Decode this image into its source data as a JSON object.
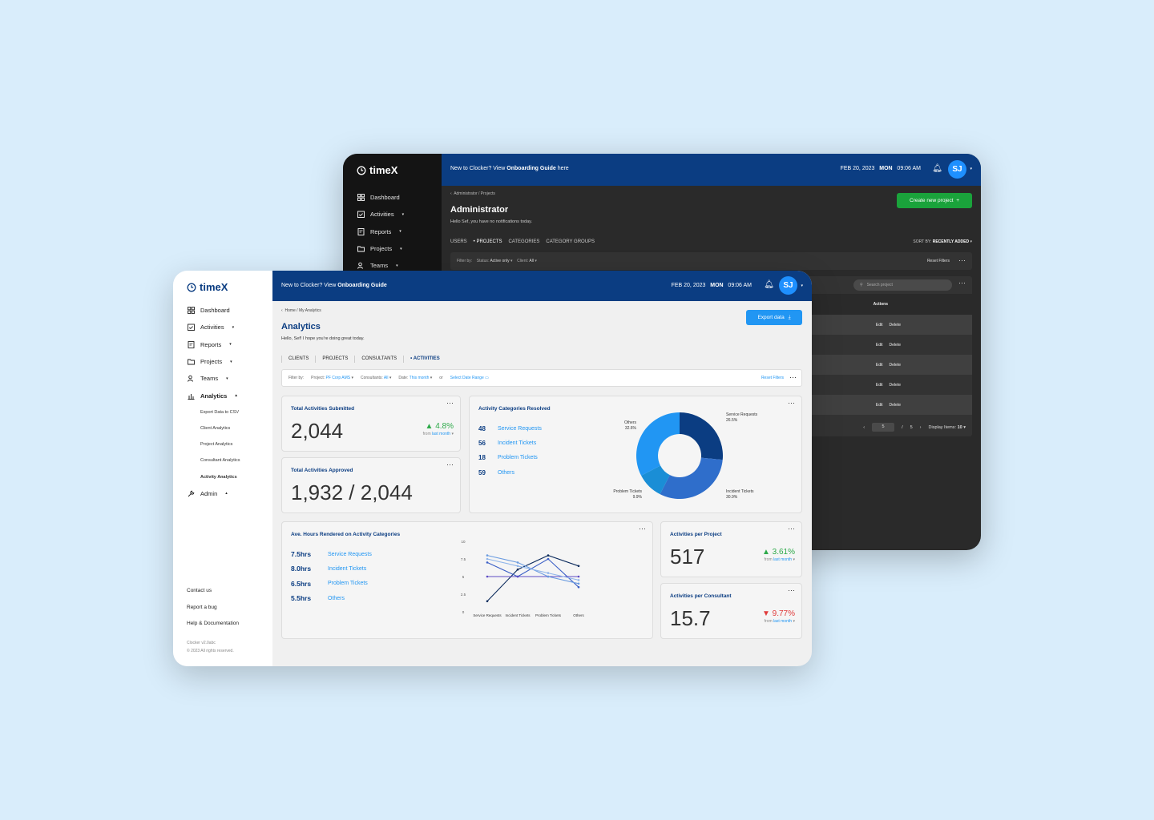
{
  "back": {
    "logo": "timeX",
    "nav": [
      "Dashboard",
      "Activities",
      "Reports",
      "Projects",
      "Teams"
    ],
    "onboarding_prefix": "New to Clocker?  View ",
    "onboarding_link": "Onboarding Guide",
    "onboarding_suffix": " here",
    "date": "FEB 20, 2023",
    "day": "MON",
    "time": "09:06 AM",
    "avatar": "SJ",
    "breadcrumb": "Administrator  /  Projects",
    "title": "Administrator",
    "subtitle": "Hello Sef, you have no notifications today.",
    "create_button": "Create new project",
    "tabs": [
      "USERS",
      "PROJECTS",
      "CATEGORIES",
      "CATEGORY GROUPS"
    ],
    "sort_label": "SORT BY:",
    "sort_value": "RECENTLY ADDED",
    "filter_label": "Filter by:",
    "status_label": "Status:",
    "status_value": "Active only",
    "client_label": "Client:",
    "client_value": "All",
    "reset_filters": "Reset Filters",
    "search_placeholder": "Search project",
    "actions_header": "Actions",
    "edit": "Edit",
    "delete": "Delete",
    "page": "5",
    "page_total": "5",
    "display_label": "Display Items:",
    "display_value": "10"
  },
  "front": {
    "logo": "timeX",
    "nav": {
      "dashboard": "Dashboard",
      "activities": "Activities",
      "reports": "Reports",
      "projects": "Projects",
      "teams": "Teams",
      "analytics": "Analytics",
      "analytics_sub": [
        "Export Data to CSV",
        "Client Analytics",
        "Project Analytics",
        "Consultant Analytics",
        "Activity Analytics"
      ],
      "admin": "Admin"
    },
    "footer": [
      "Contact us",
      "Report a bug",
      "Help & Documentation"
    ],
    "version": "Clocker v2.0abc",
    "copyright": "© 2023 All rights reserved.",
    "onboarding_prefix": "New to Clocker?  View ",
    "onboarding_link": "Onboarding Guide",
    "date": "FEB 20, 2023",
    "day": "MON",
    "time": "09:06 AM",
    "avatar": "SJ",
    "breadcrumb": "Home  /  My Analytics",
    "title": "Analytics",
    "subtitle": "Hello, Sef! I hope you're doing great today.",
    "export_button": "Export data",
    "tabs": [
      "CLIENTS",
      "PROJECTS",
      "CONSULTANTS",
      "ACTIVITIES"
    ],
    "filter": {
      "label": "Filter by:",
      "project_label": "Project:",
      "project_value": "PF Corp AMS",
      "consultants_label": "Consultants:",
      "consultants_value": "All",
      "date_label": "Date:",
      "date_value": "This month",
      "or": "or",
      "range": "Select Date Range",
      "reset": "Reset Filters"
    },
    "submitted": {
      "title": "Total Activities Submitted",
      "value": "2,044",
      "trend": "4.8%",
      "from": "from",
      "period": "last month"
    },
    "approved": {
      "title": "Total Activities Approved",
      "value": "1,932 / 2,044"
    },
    "resolved": {
      "title": "Activity Categories Resolved",
      "items": [
        {
          "n": "48",
          "label": "Service Requests"
        },
        {
          "n": "56",
          "label": "Incident Tickets"
        },
        {
          "n": "18",
          "label": "Problem Tickets"
        },
        {
          "n": "59",
          "label": "Others"
        }
      ]
    },
    "avg_hours": {
      "title": "Ave. Hours Rendered on Activity Categories",
      "items": [
        {
          "n": "7.5hrs",
          "label": "Service Requests"
        },
        {
          "n": "8.0hrs",
          "label": "Incident Tickets"
        },
        {
          "n": "6.5hrs",
          "label": "Problem Tickets"
        },
        {
          "n": "5.5hrs",
          "label": "Others"
        }
      ]
    },
    "per_project": {
      "title": "Activities per Project",
      "value": "517",
      "trend": "3.61%",
      "from": "from",
      "period": "last month"
    },
    "per_consultant": {
      "title": "Activities per Consultant",
      "value": "15.7",
      "trend": "9.77%",
      "from": "from",
      "period": "last month"
    }
  },
  "colors": {
    "navy": "#0b3d82",
    "blue": "#2196f3",
    "green": "#1aa33b",
    "up": "#2eaa4a",
    "down": "#e03b3b"
  },
  "chart_data": [
    {
      "type": "pie",
      "title": "Activity Categories Resolved",
      "donut": true,
      "slices": [
        {
          "label": "Service Requests",
          "value": 26.5,
          "display": "26.5%",
          "color": "#0b3d82"
        },
        {
          "label": "Incident Tickets",
          "value": 30.9,
          "display": "30.9%",
          "color": "#2f6ecb"
        },
        {
          "label": "Problem Tickets",
          "value": 9.9,
          "display": "9.9%",
          "color": "#1a8ed6"
        },
        {
          "label": "Others",
          "value": 32.6,
          "display": "32.6%",
          "color": "#2196f3"
        }
      ]
    },
    {
      "type": "line",
      "title": "Ave. Hours Rendered on Activity Categories",
      "categories": [
        "Service Requests",
        "Incident Tickets",
        "Problem Tickets",
        "Others"
      ],
      "yticks": [
        "0",
        "2.5",
        "5",
        "7.5",
        "10"
      ],
      "ylim": [
        0,
        10
      ],
      "series": [
        {
          "values": [
            1.5,
            6,
            8,
            6.5
          ],
          "color": "#0b2a5c"
        },
        {
          "values": [
            7,
            5,
            7.5,
            3.5
          ],
          "color": "#3b5fc6"
        },
        {
          "values": [
            5,
            5,
            5,
            5
          ],
          "color": "#5d4bc4"
        },
        {
          "values": [
            8,
            7,
            5,
            4
          ],
          "color": "#6a9be0"
        },
        {
          "values": [
            7.5,
            6.5,
            5.5,
            4.5
          ],
          "color": "#8fb5ea"
        }
      ]
    }
  ]
}
